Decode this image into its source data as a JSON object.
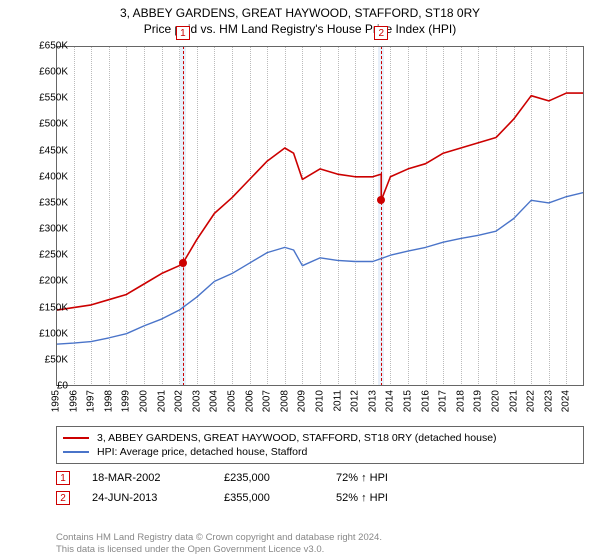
{
  "titles": {
    "line1": "3, ABBEY GARDENS, GREAT HAYWOOD, STAFFORD, ST18 0RY",
    "line2": "Price paid vs. HM Land Registry's House Price Index (HPI)"
  },
  "chart": {
    "type": "line",
    "background_color": "#ffffff",
    "border_color": "#666666",
    "grid_color": "#bbbbbb",
    "x": {
      "min": 1995,
      "max": 2025,
      "ticks": [
        1995,
        1996,
        1997,
        1998,
        1999,
        2000,
        2001,
        2002,
        2003,
        2004,
        2005,
        2006,
        2007,
        2008,
        2009,
        2010,
        2011,
        2012,
        2013,
        2014,
        2015,
        2016,
        2017,
        2018,
        2019,
        2020,
        2021,
        2022,
        2023,
        2024
      ],
      "label_fontsize": 10
    },
    "y": {
      "min": 0,
      "max": 650000,
      "ticks": [
        0,
        50000,
        100000,
        150000,
        200000,
        250000,
        300000,
        350000,
        400000,
        450000,
        500000,
        550000,
        600000,
        650000
      ],
      "tick_labels": [
        "£0",
        "£50K",
        "£100K",
        "£150K",
        "£200K",
        "£250K",
        "£300K",
        "£350K",
        "£400K",
        "£450K",
        "£500K",
        "£550K",
        "£600K",
        "£650K"
      ],
      "label_fontsize": 10
    },
    "series": [
      {
        "name": "3, ABBEY GARDENS, GREAT HAYWOOD, STAFFORD, ST18 0RY (detached house)",
        "color": "#cc0000",
        "line_width": 1.6,
        "x": [
          1995,
          1996,
          1997,
          1998,
          1999,
          2000,
          2001,
          2002,
          2002.21,
          2003,
          2004,
          2005,
          2006,
          2007,
          2008,
          2008.5,
          2009,
          2010,
          2011,
          2012,
          2013,
          2013.48,
          2013.48,
          2014,
          2015,
          2016,
          2017,
          2018,
          2019,
          2020,
          2021,
          2022,
          2023,
          2024,
          2025
        ],
        "y": [
          145000,
          150000,
          155000,
          165000,
          175000,
          195000,
          215000,
          230000,
          235000,
          280000,
          330000,
          360000,
          395000,
          430000,
          455000,
          445000,
          395000,
          415000,
          405000,
          400000,
          400000,
          405000,
          355000,
          400000,
          415000,
          425000,
          445000,
          455000,
          465000,
          475000,
          510000,
          555000,
          545000,
          560000,
          560000
        ]
      },
      {
        "name": "HPI: Average price, detached house, Stafford",
        "color": "#4a74c9",
        "line_width": 1.4,
        "x": [
          1995,
          1996,
          1997,
          1998,
          1999,
          2000,
          2001,
          2002,
          2003,
          2004,
          2005,
          2006,
          2007,
          2008,
          2008.5,
          2009,
          2010,
          2011,
          2012,
          2013,
          2014,
          2015,
          2016,
          2017,
          2018,
          2019,
          2020,
          2021,
          2022,
          2023,
          2024,
          2025
        ],
        "y": [
          80000,
          82000,
          85000,
          92000,
          100000,
          115000,
          128000,
          145000,
          170000,
          200000,
          215000,
          235000,
          255000,
          265000,
          260000,
          230000,
          245000,
          240000,
          238000,
          238000,
          250000,
          258000,
          265000,
          275000,
          282000,
          288000,
          296000,
          320000,
          355000,
          350000,
          362000,
          370000
        ]
      }
    ],
    "events": [
      {
        "idx": "1",
        "x": 2002.21,
        "band_width_years": 0.35,
        "band_color": "#d6e4f5",
        "date": "18-MAR-2002",
        "price": "£235,000",
        "delta": "72% ↑ HPI",
        "marker_y": 235000,
        "marker_color": "#cc0000"
      },
      {
        "idx": "2",
        "x": 2013.48,
        "band_width_years": 0.35,
        "band_color": "#d6e4f5",
        "date": "24-JUN-2013",
        "price": "£355,000",
        "delta": "52% ↑ HPI",
        "marker_y": 355000,
        "marker_color": "#cc0000"
      }
    ]
  },
  "legend": {
    "items": [
      {
        "color": "#cc0000",
        "label": "3, ABBEY GARDENS, GREAT HAYWOOD, STAFFORD, ST18 0RY (detached house)"
      },
      {
        "color": "#4a74c9",
        "label": "HPI: Average price, detached house, Stafford"
      }
    ]
  },
  "footer": {
    "line1": "Contains HM Land Registry data © Crown copyright and database right 2024.",
    "line2": "This data is licensed under the Open Government Licence v3.0."
  }
}
